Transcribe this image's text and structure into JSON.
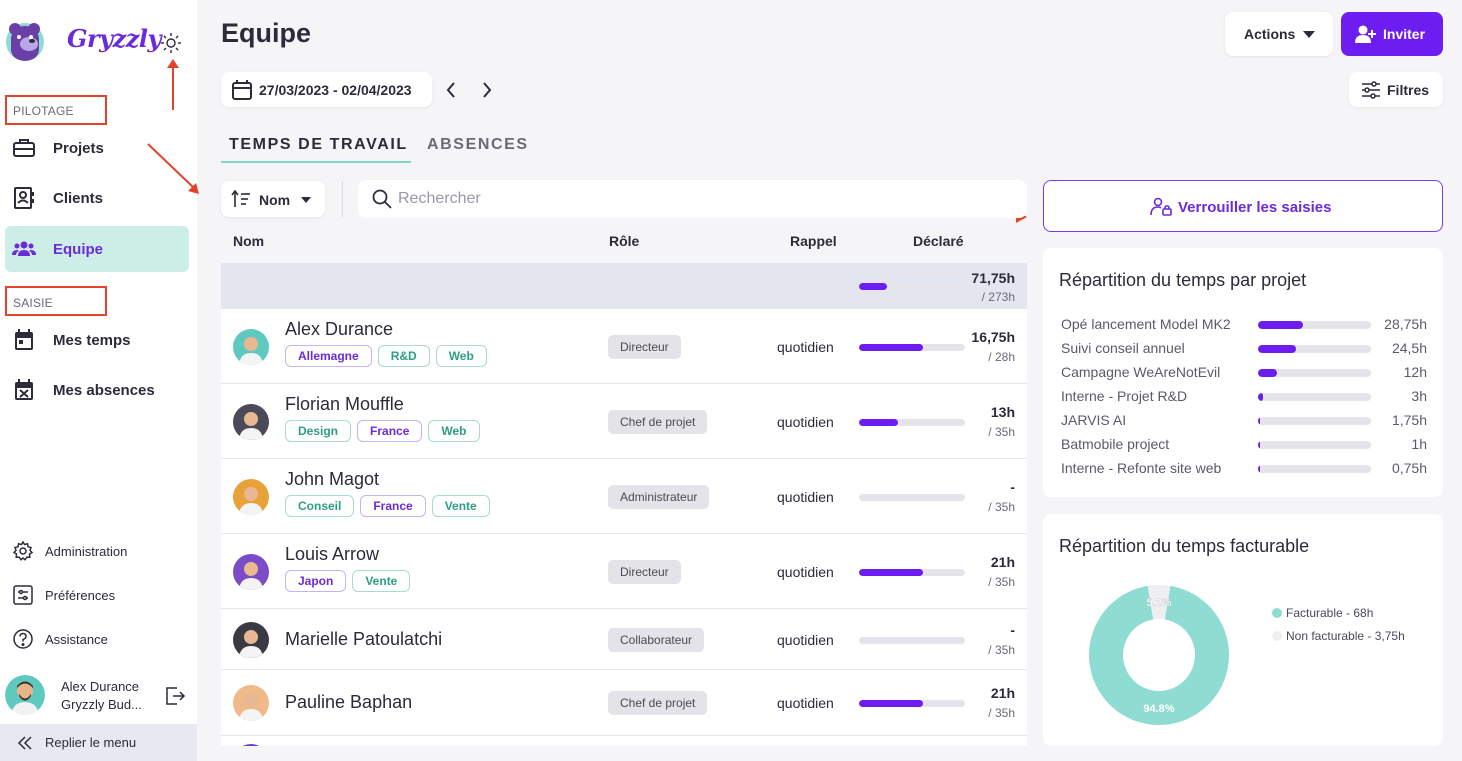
{
  "brand": {
    "name": "Gryzzly"
  },
  "sidebar": {
    "section_pilotage": "PILOTAGE",
    "section_saisie": "SAISIE",
    "items": [
      {
        "label": "Projets",
        "icon": "briefcase-icon"
      },
      {
        "label": "Clients",
        "icon": "contact-card-icon"
      },
      {
        "label": "Equipe",
        "icon": "team-icon",
        "active": true
      },
      {
        "label": "Mes temps",
        "icon": "calendar-icon"
      },
      {
        "label": "Mes absences",
        "icon": "calendar-x-icon"
      }
    ],
    "bottom": [
      {
        "label": "Administration",
        "icon": "gear-icon"
      },
      {
        "label": "Préférences",
        "icon": "sliders-icon"
      },
      {
        "label": "Assistance",
        "icon": "help-icon"
      }
    ],
    "user": {
      "name": "Alex Durance",
      "org": "Gryzzly Bud..."
    },
    "collapse_label": "Replier le menu"
  },
  "header": {
    "title": "Equipe",
    "actions_label": "Actions",
    "invite_label": "Inviter",
    "date_range": "27/03/2023 - 02/04/2023",
    "filters_label": "Filtres"
  },
  "tabs": [
    {
      "label": "TEMPS DE TRAVAIL",
      "active": true
    },
    {
      "label": "ABSENCES",
      "active": false
    }
  ],
  "toolbar": {
    "sort_label": "Nom",
    "search_placeholder": "Rechercher"
  },
  "table": {
    "columns": [
      "Nom",
      "Rôle",
      "Rappel",
      "Déclaré"
    ],
    "total": {
      "declared": "71,75h",
      "expected": "/ 273h",
      "progress": 0.26
    },
    "rows": [
      {
        "name": "Alex Durance",
        "tags": [
          {
            "label": "Allemagne",
            "color": "purple"
          },
          {
            "label": "R&D",
            "color": "teal"
          },
          {
            "label": "Web",
            "color": "teal"
          }
        ],
        "role": "Directeur",
        "rappel": "quotidien",
        "declared": "16,75h",
        "expected": "/ 28h",
        "progress": 0.6,
        "avatar_bg": "#5fc9c0"
      },
      {
        "name": "Florian Mouffle",
        "tags": [
          {
            "label": "Design",
            "color": "teal"
          },
          {
            "label": "France",
            "color": "purple"
          },
          {
            "label": "Web",
            "color": "teal"
          }
        ],
        "role": "Chef de projet",
        "rappel": "quotidien",
        "declared": "13h",
        "expected": "/ 35h",
        "progress": 0.37,
        "avatar_bg": "#4a4a58"
      },
      {
        "name": "John Magot",
        "tags": [
          {
            "label": "Conseil",
            "color": "teal"
          },
          {
            "label": "France",
            "color": "purple"
          },
          {
            "label": "Vente",
            "color": "teal"
          }
        ],
        "role": "Administrateur",
        "rappel": "quotidien",
        "declared": "-",
        "expected": "/ 35h",
        "progress": 0,
        "avatar_bg": "#e8a23a"
      },
      {
        "name": "Louis Arrow",
        "tags": [
          {
            "label": "Japon",
            "color": "purple"
          },
          {
            "label": "Vente",
            "color": "teal"
          }
        ],
        "role": "Directeur",
        "rappel": "quotidien",
        "declared": "21h",
        "expected": "/ 35h",
        "progress": 0.6,
        "avatar_bg": "#7a4cc7"
      },
      {
        "name": "Marielle Patoulatchi",
        "tags": [],
        "role": "Collaborateur",
        "rappel": "quotidien",
        "declared": "-",
        "expected": "/ 35h",
        "progress": 0,
        "avatar_bg": "#3a3a44"
      },
      {
        "name": "Pauline Baphan",
        "tags": [],
        "role": "Chef de projet",
        "rappel": "quotidien",
        "declared": "21h",
        "expected": "/ 35h",
        "progress": 0.6,
        "avatar_bg": "#f0b98a"
      }
    ]
  },
  "lock_button_label": "Verrouiller les saisies",
  "projects_card": {
    "title": "Répartition du temps par projet",
    "items": [
      {
        "name": "Opé lancement Model MK2",
        "value": "28,75h",
        "progress": 0.4
      },
      {
        "name": "Suivi conseil annuel",
        "value": "24,5h",
        "progress": 0.34
      },
      {
        "name": "Campagne WeAreNotEvil",
        "value": "12h",
        "progress": 0.17
      },
      {
        "name": "Interne - Projet R&D",
        "value": "3h",
        "progress": 0.04
      },
      {
        "name": "JARVIS AI",
        "value": "1,75h",
        "progress": 0.02
      },
      {
        "name": "Batmobile project",
        "value": "1h",
        "progress": 0.014
      },
      {
        "name": "Interne - Refonte site web",
        "value": "0,75h",
        "progress": 0.01
      }
    ]
  },
  "billable_card": {
    "title": "Répartition du temps facturable"
  },
  "chart_data": {
    "type": "pie",
    "labels": [
      "Facturable - 68h",
      "Non facturable - 3,75h"
    ],
    "values": [
      94.8,
      5.2
    ],
    "slice_labels": [
      "94.8%",
      "5.2%"
    ],
    "colors": [
      "#8fdcd3",
      "#efeff2"
    ],
    "legend": "right"
  },
  "colors": {
    "accent": "#6d1df0",
    "teal": "#8fdcd3",
    "annotation": "#e0452b"
  }
}
